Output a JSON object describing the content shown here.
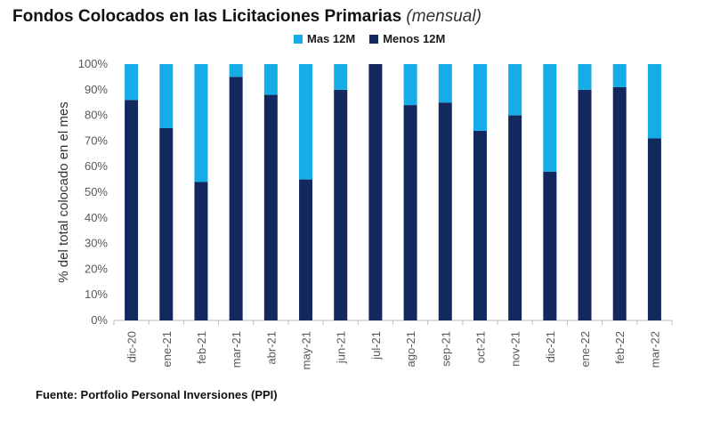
{
  "title": "Fondos Colocados en las Licitaciones Primarias",
  "subtitle": "(mensual)",
  "source": "Fuente: Portfolio Personal Inversiones (PPI)",
  "colors": {
    "mas12m": "#16ace8",
    "menos12m": "#13285e",
    "axis": "#bbbbbb",
    "tick": "#595959"
  },
  "chart_data": {
    "type": "bar",
    "stacked": true,
    "title": "Fondos Colocados en las Licitaciones Primarias (mensual)",
    "xlabel": "",
    "ylabel": "% del total colocado en el mes",
    "ylim": [
      0,
      100
    ],
    "yticks": [
      "0%",
      "10%",
      "20%",
      "30%",
      "40%",
      "50%",
      "60%",
      "70%",
      "80%",
      "90%",
      "100%"
    ],
    "categories": [
      "dic-20",
      "ene-21",
      "feb-21",
      "mar-21",
      "abr-21",
      "may-21",
      "jun-21",
      "jul-21",
      "ago-21",
      "sep-21",
      "oct-21",
      "nov-21",
      "dic-21",
      "ene-22",
      "feb-22",
      "mar-22"
    ],
    "legend": "top",
    "series": [
      {
        "name": "Menos 12M",
        "values": [
          86,
          75,
          54,
          95,
          88,
          55,
          90,
          100,
          84,
          85,
          74,
          80,
          58,
          90,
          91,
          71
        ]
      },
      {
        "name": "Mas 12M",
        "values": [
          14,
          25,
          46,
          5,
          12,
          45,
          10,
          0,
          16,
          15,
          26,
          20,
          42,
          10,
          9,
          29
        ]
      }
    ]
  }
}
